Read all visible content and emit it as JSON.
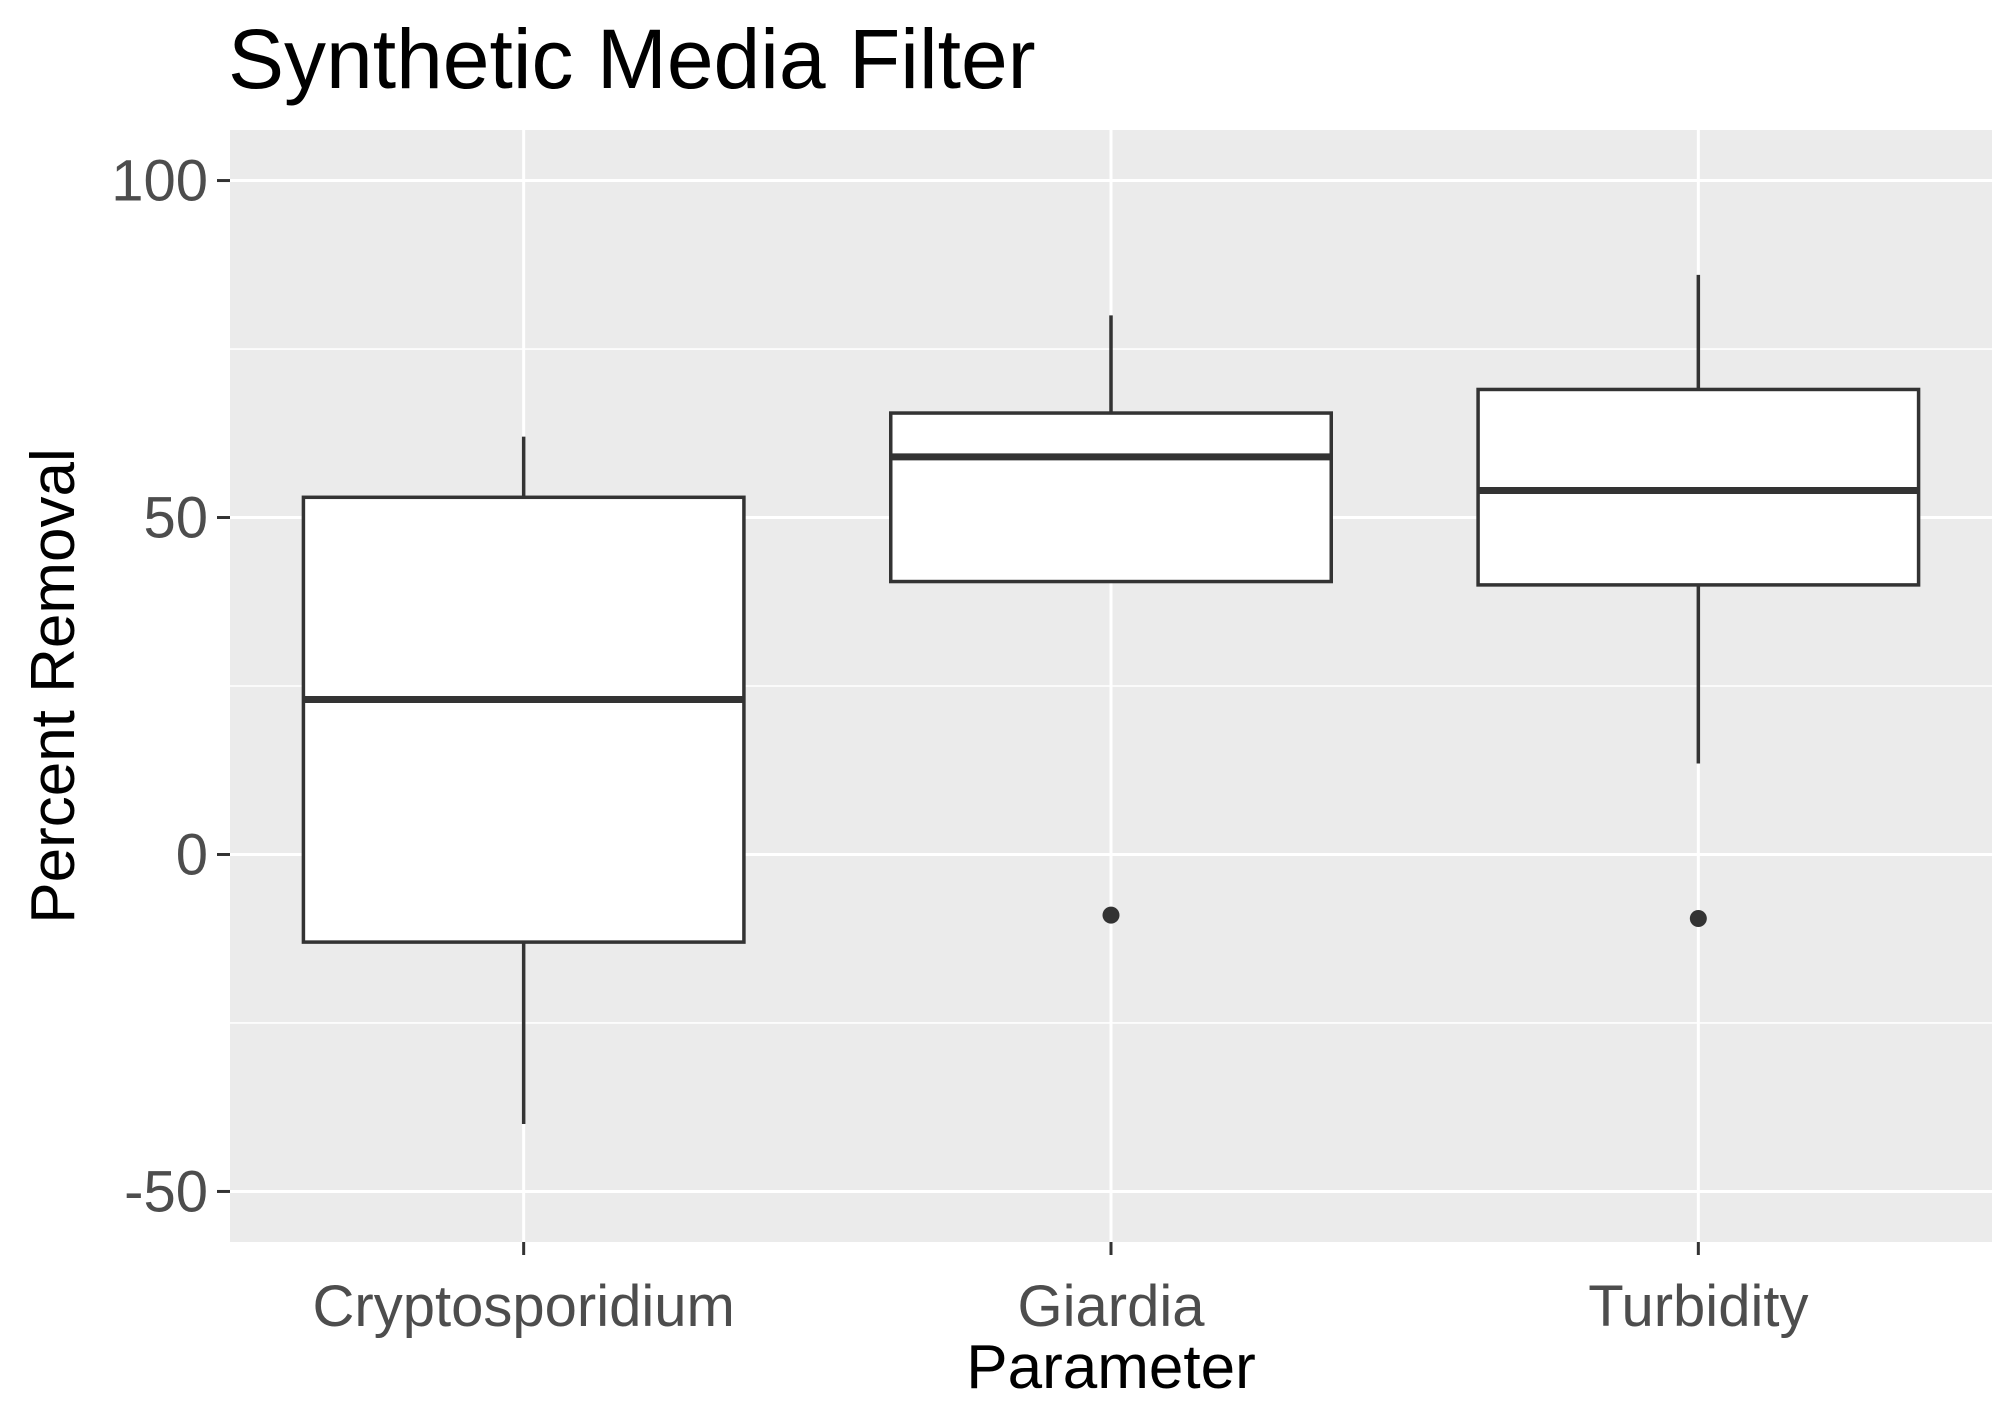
{
  "chart_data": {
    "type": "boxplot",
    "title": "Synthetic Media Filter",
    "xlabel": "Parameter",
    "ylabel": "Percent Removal",
    "categories": [
      "Cryptosporidium",
      "Giardia",
      "Turbidity"
    ],
    "ylim": [
      -57.5,
      107.5
    ],
    "yticks": [
      -50,
      0,
      50,
      100
    ],
    "ytick_labels": [
      "-50",
      "0",
      "50",
      "100"
    ],
    "grid": true,
    "boxes": [
      {
        "category": "Cryptosporidium",
        "whisker_low": -40,
        "q1": -13,
        "median": 23,
        "q3": 53,
        "whisker_high": 62,
        "outliers": []
      },
      {
        "category": "Giardia",
        "whisker_low": 40.5,
        "q1": 40.5,
        "median": 59,
        "q3": 65.5,
        "whisker_high": 80,
        "outliers": [
          -9
        ]
      },
      {
        "category": "Turbidity",
        "whisker_low": 13.5,
        "q1": 40,
        "median": 54,
        "q3": 69,
        "whisker_high": 86,
        "outliers": [
          -9.5
        ]
      }
    ]
  }
}
